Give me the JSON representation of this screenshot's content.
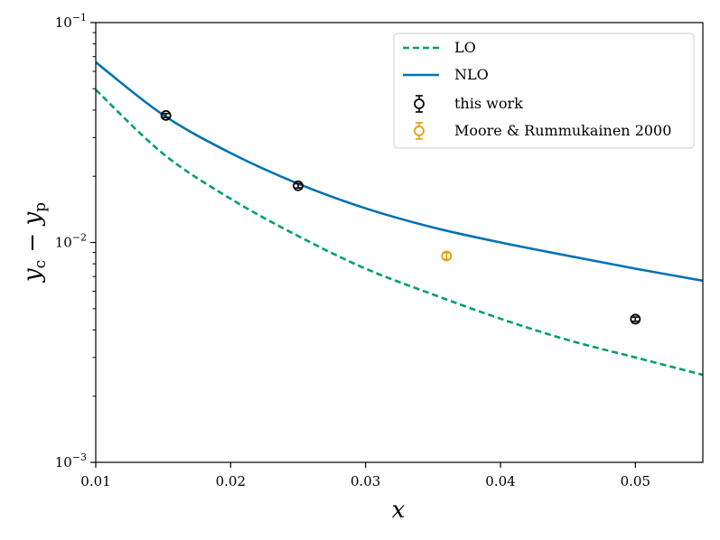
{
  "chart_data": {
    "type": "line",
    "xlabel": "x",
    "ylabel": "y_c − y_p",
    "ylabel_parts": {
      "main1": "y",
      "sub1": "c",
      "minus": " − ",
      "main2": "y",
      "sub2": "p"
    },
    "xlim": [
      0.01,
      0.055
    ],
    "ylim": [
      0.001,
      0.1
    ],
    "yscale": "log",
    "grid": false,
    "legend_position": "top-right",
    "x_ticks": [
      0.01,
      0.02,
      0.03,
      0.04,
      0.05
    ],
    "x_tick_labels": [
      "0.01",
      "0.02",
      "0.03",
      "0.04",
      "0.05"
    ],
    "y_ticks": [
      {
        "value": 0.1,
        "base": "10",
        "exp": "−1"
      },
      {
        "value": 0.01,
        "base": "10",
        "exp": "−2"
      },
      {
        "value": 0.001,
        "base": "10",
        "exp": "−3"
      }
    ],
    "series": [
      {
        "name": "LO",
        "kind": "line",
        "style": "dashed",
        "color": "#009e73",
        "x": [
          0.01,
          0.015,
          0.02,
          0.025,
          0.03,
          0.035,
          0.04,
          0.045,
          0.05,
          0.055
        ],
        "y": [
          0.0495,
          0.0253,
          0.0158,
          0.0107,
          0.0076,
          0.0058,
          0.0045,
          0.0036,
          0.003,
          0.0025
        ]
      },
      {
        "name": "NLO",
        "kind": "line",
        "style": "solid",
        "color": "#0072b2",
        "x": [
          0.01,
          0.015,
          0.02,
          0.025,
          0.03,
          0.035,
          0.04,
          0.045,
          0.05,
          0.055
        ],
        "y": [
          0.066,
          0.038,
          0.0255,
          0.0185,
          0.0143,
          0.0117,
          0.01,
          0.0087,
          0.0076,
          0.0067
        ]
      },
      {
        "name": "this work",
        "kind": "points",
        "color": "#000000",
        "points": [
          {
            "x": 0.0152,
            "y": 0.0378,
            "err": 0.0008
          },
          {
            "x": 0.025,
            "y": 0.0181,
            "err": 0.0004
          },
          {
            "x": 0.05,
            "y": 0.00448,
            "err": 0.0001
          }
        ]
      },
      {
        "name": "Moore & Rummukainen 2000",
        "kind": "points",
        "color": "#e69f00",
        "points": [
          {
            "x": 0.036,
            "y": 0.00868,
            "err": 0.0003
          }
        ]
      }
    ]
  }
}
